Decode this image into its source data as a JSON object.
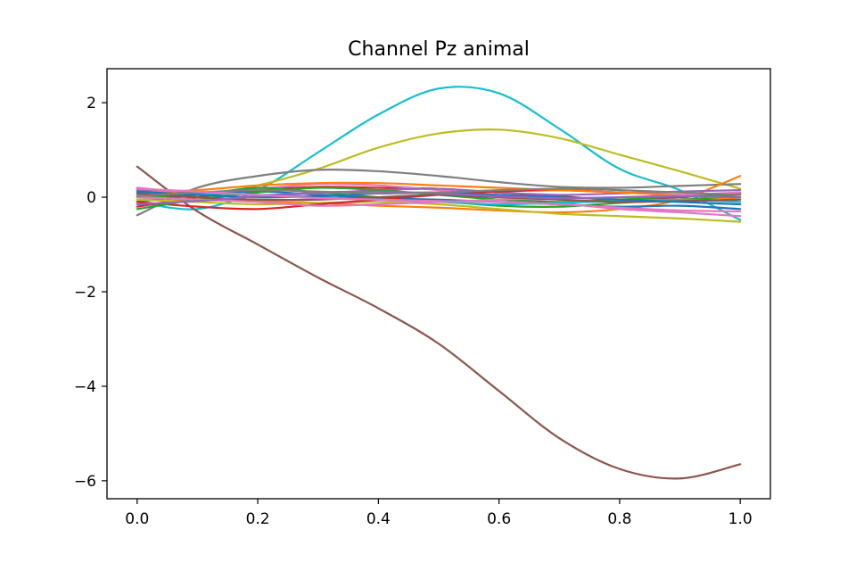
{
  "chart_data": {
    "type": "line",
    "title": "Channel Pz animal",
    "xlabel": "",
    "ylabel": "",
    "xlim": [
      -0.05,
      1.05
    ],
    "ylim": [
      -6.38,
      2.72
    ],
    "xticks": [
      0.0,
      0.2,
      0.4,
      0.6,
      0.8,
      1.0
    ],
    "xtick_labels": [
      "0.0",
      "0.2",
      "0.4",
      "0.6",
      "0.8",
      "1.0"
    ],
    "yticks": [
      2,
      0,
      -2,
      -4,
      -6
    ],
    "ytick_labels": [
      "2",
      "0",
      "−2",
      "−4",
      "−6"
    ],
    "grid": false,
    "legend": false,
    "x": [
      0.0,
      0.1,
      0.2,
      0.3,
      0.4,
      0.5,
      0.6,
      0.7,
      0.8,
      0.9,
      1.0
    ],
    "series": [
      {
        "color": "#17becf",
        "values": [
          -0.1,
          -0.25,
          0.15,
          0.95,
          1.75,
          2.3,
          2.2,
          1.45,
          0.6,
          0.15,
          -0.48
        ]
      },
      {
        "color": "#bcbd22",
        "values": [
          -0.05,
          0.0,
          0.25,
          0.6,
          1.05,
          1.35,
          1.43,
          1.25,
          0.9,
          0.55,
          0.18
        ]
      },
      {
        "color": "#8c564b",
        "values": [
          0.65,
          -0.3,
          -1.0,
          -1.7,
          -2.35,
          -3.1,
          -4.1,
          -5.1,
          -5.75,
          -5.95,
          -5.65
        ]
      },
      {
        "color": "#7f7f7f",
        "values": [
          -0.38,
          0.2,
          0.45,
          0.58,
          0.55,
          0.45,
          0.32,
          0.22,
          0.2,
          0.24,
          0.28
        ]
      },
      {
        "color": "#ff7f0e",
        "values": [
          0.05,
          0.0,
          -0.08,
          -0.12,
          -0.18,
          -0.22,
          -0.28,
          -0.32,
          -0.25,
          -0.05,
          0.45
        ]
      },
      {
        "color": "#d62728",
        "values": [
          -0.2,
          0.0,
          0.15,
          0.22,
          0.2,
          0.18,
          0.1,
          0.02,
          -0.05,
          0.0,
          0.08
        ]
      },
      {
        "color": "#e377c2",
        "values": [
          0.2,
          0.1,
          0.18,
          0.28,
          0.25,
          0.15,
          0.02,
          -0.12,
          -0.25,
          -0.32,
          -0.4
        ]
      },
      {
        "color": "#2ca02c",
        "values": [
          0.0,
          0.05,
          0.2,
          0.1,
          0.0,
          -0.08,
          -0.18,
          -0.2,
          -0.12,
          -0.05,
          0.0
        ]
      },
      {
        "color": "#1f77b4",
        "values": [
          -0.1,
          0.05,
          0.12,
          0.05,
          -0.02,
          -0.05,
          -0.1,
          -0.15,
          -0.2,
          -0.18,
          -0.25
        ]
      },
      {
        "color": "#9467bd",
        "values": [
          0.15,
          0.1,
          0.05,
          0.08,
          0.15,
          0.18,
          0.1,
          0.05,
          0.08,
          0.12,
          0.15
        ]
      },
      {
        "color": "#bcbd22",
        "values": [
          -0.05,
          -0.1,
          -0.15,
          -0.12,
          -0.1,
          -0.15,
          -0.25,
          -0.35,
          -0.4,
          -0.45,
          -0.52
        ]
      },
      {
        "color": "#d62728",
        "values": [
          -0.1,
          -0.2,
          -0.25,
          -0.15,
          -0.05,
          0.05,
          0.12,
          0.15,
          0.1,
          0.05,
          0.0
        ]
      },
      {
        "color": "#ff7f0e",
        "values": [
          0.1,
          0.15,
          0.25,
          0.3,
          0.3,
          0.25,
          0.2,
          0.15,
          0.1,
          0.05,
          -0.05
        ]
      },
      {
        "color": "#2ca02c",
        "values": [
          -0.25,
          -0.05,
          0.1,
          0.2,
          0.15,
          0.05,
          -0.05,
          -0.1,
          -0.05,
          0.02,
          0.05
        ]
      },
      {
        "color": "#17becf",
        "values": [
          0.05,
          0.08,
          0.05,
          0.0,
          -0.05,
          -0.1,
          -0.15,
          -0.12,
          -0.08,
          -0.05,
          -0.1
        ]
      },
      {
        "color": "#e377c2",
        "values": [
          0.0,
          -0.05,
          -0.1,
          -0.18,
          -0.15,
          -0.1,
          -0.05,
          -0.02,
          0.0,
          0.05,
          0.1
        ]
      },
      {
        "color": "#8c564b",
        "values": [
          0.08,
          0.0,
          -0.05,
          -0.05,
          0.0,
          0.05,
          0.0,
          -0.05,
          -0.1,
          -0.08,
          -0.05
        ]
      },
      {
        "color": "#1f77b4",
        "values": [
          0.12,
          0.05,
          0.0,
          0.02,
          0.08,
          0.1,
          0.05,
          0.0,
          -0.05,
          -0.1,
          -0.15
        ]
      },
      {
        "color": "#9467bd",
        "values": [
          -0.15,
          -0.08,
          0.02,
          0.1,
          0.12,
          0.08,
          0.02,
          -0.02,
          0.0,
          0.02,
          0.0
        ]
      },
      {
        "color": "#7f7f7f",
        "values": [
          0.02,
          0.1,
          0.15,
          0.12,
          0.08,
          0.1,
          0.15,
          0.18,
          0.15,
          0.1,
          0.05
        ]
      },
      {
        "color": "#e377c2",
        "values": [
          0.18,
          0.12,
          0.05,
          -0.02,
          -0.05,
          -0.08,
          -0.1,
          -0.15,
          -0.22,
          -0.28,
          -0.3
        ]
      }
    ]
  }
}
